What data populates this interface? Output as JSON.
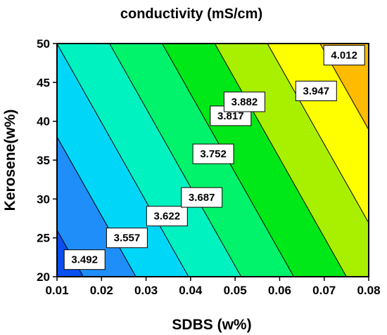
{
  "chart_data": {
    "type": "contour",
    "title": "conductivity (mS/cm)",
    "xlabel": "SDBS (w%)",
    "ylabel": "Kerosene(w%)",
    "xlim": [
      0.01,
      0.08
    ],
    "ylim": [
      20,
      50
    ],
    "x_ticks": [
      "0.01",
      "0.02",
      "0.03",
      "0.04",
      "0.05",
      "0.06",
      "0.07",
      "0.08"
    ],
    "y_ticks": [
      "20",
      "25",
      "30",
      "35",
      "40",
      "45",
      "50"
    ],
    "surface": {
      "form": "linear",
      "z_at_x0_y0": 3.4595,
      "dz_dx": 5.5,
      "dz_dy": 0.00542
    },
    "contour_levels": [
      3.492,
      3.557,
      3.622,
      3.687,
      3.752,
      3.817,
      3.882,
      3.947,
      4.012
    ],
    "contour_labels": [
      {
        "text": "3.492",
        "x": 0.0162,
        "y": 22.2
      },
      {
        "text": "3.557",
        "x": 0.0257,
        "y": 25.0
      },
      {
        "text": "3.622",
        "x": 0.0347,
        "y": 27.8
      },
      {
        "text": "3.687",
        "x": 0.0425,
        "y": 30.2
      },
      {
        "text": "3.752",
        "x": 0.0451,
        "y": 35.8
      },
      {
        "text": "3.817",
        "x": 0.049,
        "y": 40.7
      },
      {
        "text": "3.882",
        "x": 0.0521,
        "y": 42.5
      },
      {
        "text": "3.947",
        "x": 0.0682,
        "y": 43.9
      },
      {
        "text": "4.012",
        "x": 0.0745,
        "y": 48.5
      }
    ],
    "bands": [
      {
        "from": -1,
        "to": 3.492,
        "color": "#0a4ff0"
      },
      {
        "from": 3.492,
        "to": 3.557,
        "color": "#1f8ef8"
      },
      {
        "from": 3.557,
        "to": 3.622,
        "color": "#00d7f8"
      },
      {
        "from": 3.622,
        "to": 3.687,
        "color": "#00f2c0"
      },
      {
        "from": 3.687,
        "to": 3.752,
        "color": "#00f36a"
      },
      {
        "from": 3.752,
        "to": 3.817,
        "color": "#00e818"
      },
      {
        "from": 3.817,
        "to": 3.882,
        "color": "#a8f000"
      },
      {
        "from": 3.882,
        "to": 3.947,
        "color": "#ffff00"
      },
      {
        "from": 3.947,
        "to": 4.012,
        "color": "#ffbb00"
      },
      {
        "from": 4.012,
        "to": 99,
        "color": "#ff5a00"
      }
    ],
    "grid": false,
    "legend": "none"
  }
}
